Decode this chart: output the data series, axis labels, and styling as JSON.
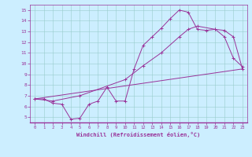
{
  "background_color": "#cceeff",
  "line_color": "#993399",
  "xlabel": "Windchill (Refroidissement éolien,°C)",
  "xlim": [
    -0.5,
    23.5
  ],
  "ylim": [
    4.5,
    15.5
  ],
  "xticks": [
    0,
    1,
    2,
    3,
    4,
    5,
    6,
    7,
    8,
    9,
    10,
    11,
    12,
    13,
    14,
    15,
    16,
    17,
    18,
    19,
    20,
    21,
    22,
    23
  ],
  "yticks": [
    5,
    6,
    7,
    8,
    9,
    10,
    11,
    12,
    13,
    14,
    15
  ],
  "line1_x": [
    0,
    1,
    2,
    3,
    4,
    5,
    6,
    7,
    8,
    9,
    10,
    11,
    12,
    13,
    14,
    15,
    16,
    17,
    18,
    19,
    20,
    21,
    22,
    23
  ],
  "line1_y": [
    6.7,
    6.7,
    6.3,
    6.2,
    4.8,
    4.9,
    6.2,
    6.5,
    7.8,
    6.5,
    6.5,
    9.5,
    11.7,
    12.5,
    13.3,
    14.2,
    15.0,
    14.8,
    13.2,
    13.1,
    13.2,
    12.5,
    10.5,
    9.7
  ],
  "line2_x": [
    0,
    2,
    5,
    10,
    12,
    14,
    16,
    17,
    18,
    20,
    21,
    22,
    23
  ],
  "line2_y": [
    6.7,
    6.5,
    7.0,
    8.5,
    9.8,
    11.0,
    12.5,
    13.2,
    13.5,
    13.2,
    13.1,
    12.5,
    9.5
  ],
  "line3_x": [
    0,
    23
  ],
  "line3_y": [
    6.7,
    9.5
  ]
}
